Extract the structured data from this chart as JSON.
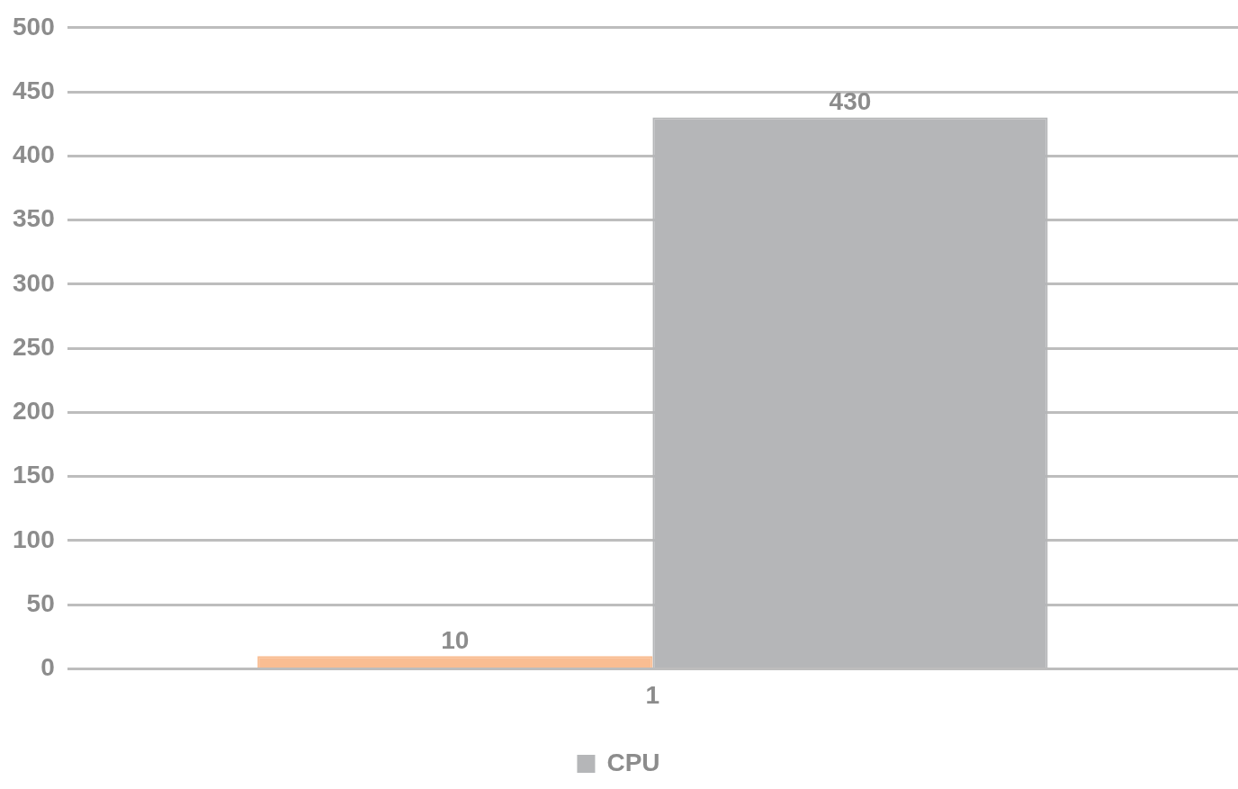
{
  "chart_data": {
    "type": "bar",
    "categories": [
      "1"
    ],
    "series": [
      {
        "color": "#f9bd92",
        "values": [
          10
        ]
      },
      {
        "name": "CPU",
        "color": "#b5b6b8",
        "values": [
          430
        ]
      }
    ],
    "ylim": [
      0,
      500
    ],
    "yticks": [
      0,
      50,
      100,
      150,
      200,
      250,
      300,
      350,
      400,
      450,
      500
    ],
    "grid": "y",
    "legend": "bottom",
    "data_labels": true
  }
}
